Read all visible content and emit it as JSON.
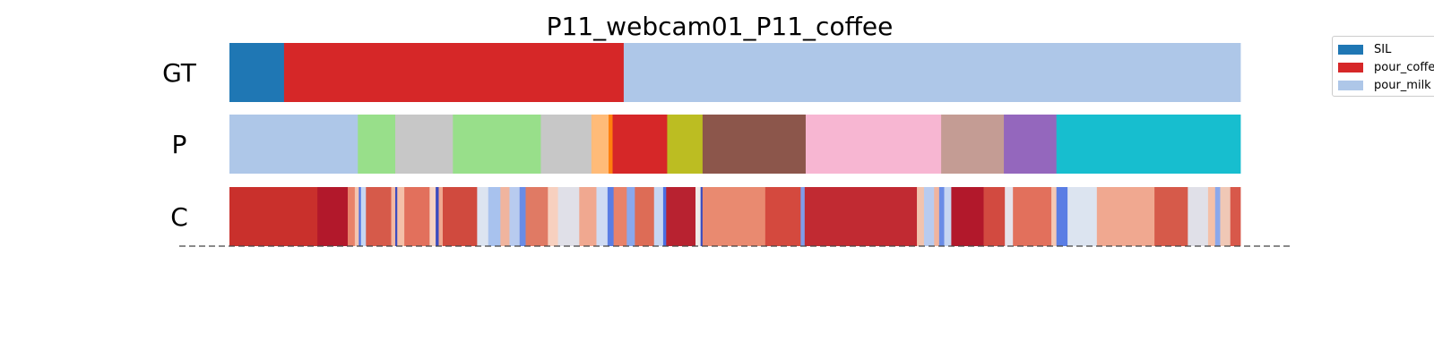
{
  "chart_data": {
    "type": "segmentation",
    "title": "P11_webcam01_P11_coffee",
    "x_range": [
      0,
      1
    ],
    "rows": [
      {
        "label": "GT",
        "segments": [
          {
            "start": 0.0,
            "end": 0.054,
            "color": "#1f77b4"
          },
          {
            "start": 0.054,
            "end": 0.39,
            "color": "#d62728"
          },
          {
            "start": 0.39,
            "end": 1.0,
            "color": "#aec7e8"
          }
        ]
      },
      {
        "label": "P",
        "segments": [
          {
            "start": 0.0,
            "end": 0.127,
            "color": "#aec7e8"
          },
          {
            "start": 0.127,
            "end": 0.164,
            "color": "#98df8a"
          },
          {
            "start": 0.164,
            "end": 0.221,
            "color": "#c7c7c7"
          },
          {
            "start": 0.221,
            "end": 0.308,
            "color": "#98df8a"
          },
          {
            "start": 0.308,
            "end": 0.358,
            "color": "#c7c7c7"
          },
          {
            "start": 0.358,
            "end": 0.375,
            "color": "#ffbb78"
          },
          {
            "start": 0.375,
            "end": 0.379,
            "color": "#ff7f0e"
          },
          {
            "start": 0.379,
            "end": 0.433,
            "color": "#d62728"
          },
          {
            "start": 0.433,
            "end": 0.468,
            "color": "#bcbd22"
          },
          {
            "start": 0.468,
            "end": 0.57,
            "color": "#8c564b"
          },
          {
            "start": 0.57,
            "end": 0.704,
            "color": "#f7b6d2"
          },
          {
            "start": 0.704,
            "end": 0.766,
            "color": "#c49c94"
          },
          {
            "start": 0.766,
            "end": 0.818,
            "color": "#9467bd"
          },
          {
            "start": 0.818,
            "end": 1.0,
            "color": "#17becf"
          }
        ]
      },
      {
        "label": "C",
        "segments": [
          {
            "start": 0.0,
            "end": 0.087,
            "color": "#c9302c"
          },
          {
            "start": 0.087,
            "end": 0.117,
            "color": "#b2182b"
          },
          {
            "start": 0.117,
            "end": 0.124,
            "color": "#e8826a"
          },
          {
            "start": 0.124,
            "end": 0.128,
            "color": "#f3c4b0"
          },
          {
            "start": 0.128,
            "end": 0.13,
            "color": "#4a6fe3"
          },
          {
            "start": 0.13,
            "end": 0.135,
            "color": "#c6d6f2"
          },
          {
            "start": 0.135,
            "end": 0.16,
            "color": "#d65a4a"
          },
          {
            "start": 0.16,
            "end": 0.164,
            "color": "#f2b8a2"
          },
          {
            "start": 0.164,
            "end": 0.166,
            "color": "#3b4cc0"
          },
          {
            "start": 0.166,
            "end": 0.173,
            "color": "#f4c0a8"
          },
          {
            "start": 0.173,
            "end": 0.198,
            "color": "#e2705c"
          },
          {
            "start": 0.198,
            "end": 0.204,
            "color": "#f5d2c2"
          },
          {
            "start": 0.204,
            "end": 0.207,
            "color": "#3b4cc0"
          },
          {
            "start": 0.207,
            "end": 0.211,
            "color": "#f0a890"
          },
          {
            "start": 0.211,
            "end": 0.245,
            "color": "#d04a3e"
          },
          {
            "start": 0.245,
            "end": 0.256,
            "color": "#dce4f0"
          },
          {
            "start": 0.256,
            "end": 0.268,
            "color": "#a8c2ee"
          },
          {
            "start": 0.268,
            "end": 0.277,
            "color": "#f0b49e"
          },
          {
            "start": 0.277,
            "end": 0.287,
            "color": "#b8cbef"
          },
          {
            "start": 0.287,
            "end": 0.293,
            "color": "#6a8ce6"
          },
          {
            "start": 0.293,
            "end": 0.315,
            "color": "#e07a64"
          },
          {
            "start": 0.315,
            "end": 0.325,
            "color": "#f7d0bf"
          },
          {
            "start": 0.325,
            "end": 0.346,
            "color": "#e0e0e8"
          },
          {
            "start": 0.346,
            "end": 0.363,
            "color": "#f0a890"
          },
          {
            "start": 0.363,
            "end": 0.374,
            "color": "#cfdbf3"
          },
          {
            "start": 0.374,
            "end": 0.38,
            "color": "#5a7de4"
          },
          {
            "start": 0.38,
            "end": 0.393,
            "color": "#e8826a"
          },
          {
            "start": 0.393,
            "end": 0.401,
            "color": "#8aa8ec"
          },
          {
            "start": 0.401,
            "end": 0.42,
            "color": "#dd6c56"
          },
          {
            "start": 0.42,
            "end": 0.429,
            "color": "#c6d6f2"
          },
          {
            "start": 0.429,
            "end": 0.432,
            "color": "#4a6fe3"
          },
          {
            "start": 0.432,
            "end": 0.461,
            "color": "#b82230"
          },
          {
            "start": 0.461,
            "end": 0.466,
            "color": "#f0ece8"
          },
          {
            "start": 0.466,
            "end": 0.468,
            "color": "#3b4cc0"
          },
          {
            "start": 0.468,
            "end": 0.53,
            "color": "#e98a70"
          },
          {
            "start": 0.53,
            "end": 0.565,
            "color": "#d4493e"
          },
          {
            "start": 0.565,
            "end": 0.569,
            "color": "#7f9cea"
          },
          {
            "start": 0.569,
            "end": 0.68,
            "color": "#c12a32"
          },
          {
            "start": 0.68,
            "end": 0.687,
            "color": "#f2c3ad"
          },
          {
            "start": 0.687,
            "end": 0.697,
            "color": "#b8cbef"
          },
          {
            "start": 0.697,
            "end": 0.702,
            "color": "#f0b49e"
          },
          {
            "start": 0.702,
            "end": 0.707,
            "color": "#6a8ce6"
          },
          {
            "start": 0.707,
            "end": 0.714,
            "color": "#c6d6f2"
          },
          {
            "start": 0.714,
            "end": 0.746,
            "color": "#b2182b"
          },
          {
            "start": 0.746,
            "end": 0.767,
            "color": "#d24a40"
          },
          {
            "start": 0.767,
            "end": 0.775,
            "color": "#e6e2ea"
          },
          {
            "start": 0.775,
            "end": 0.813,
            "color": "#e2705c"
          },
          {
            "start": 0.813,
            "end": 0.818,
            "color": "#f4c8b4"
          },
          {
            "start": 0.818,
            "end": 0.829,
            "color": "#5a7de4"
          },
          {
            "start": 0.829,
            "end": 0.858,
            "color": "#dce4f0"
          },
          {
            "start": 0.858,
            "end": 0.915,
            "color": "#f0a890"
          },
          {
            "start": 0.915,
            "end": 0.948,
            "color": "#d65a4a"
          },
          {
            "start": 0.948,
            "end": 0.968,
            "color": "#e0e0e8"
          },
          {
            "start": 0.968,
            "end": 0.975,
            "color": "#f4c0a8"
          },
          {
            "start": 0.975,
            "end": 0.98,
            "color": "#8aa8ec"
          },
          {
            "start": 0.98,
            "end": 0.99,
            "color": "#f0c8b6"
          },
          {
            "start": 0.99,
            "end": 1.0,
            "color": "#d8584a"
          }
        ]
      }
    ],
    "legend": {
      "placement": "upper-right",
      "entries": [
        {
          "label": "SIL",
          "color": "#1f77b4"
        },
        {
          "label": "pour_coffee",
          "color": "#d62728"
        },
        {
          "label": "pour_milk",
          "color": "#aec7e8"
        }
      ]
    }
  }
}
